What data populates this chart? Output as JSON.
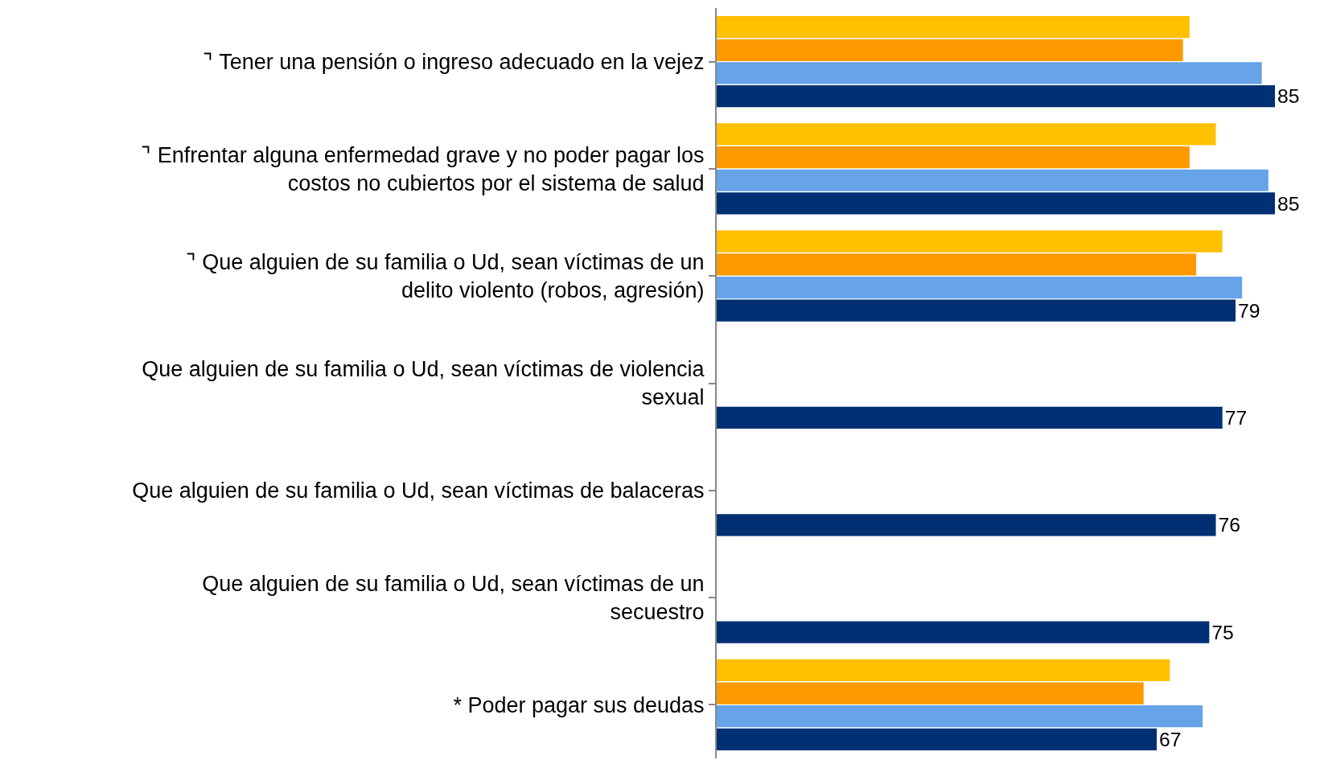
{
  "chart_data": {
    "type": "bar",
    "orientation": "horizontal",
    "tick_labels": "y",
    "categories": [
      "⌝ Tener una pensión o ingreso adecuado en la vejez",
      "⌝ Enfrentar alguna enfermedad grave y no poder pagar los costos no cubiertos por el sistema de salud",
      "⌝ Que alguien de su familia o Ud, sean víctimas de un delito violento (robos, agresión)",
      "Que alguien de su familia o Ud, sean víctimas de violencia sexual",
      "Que alguien de su familia o Ud, sean víctimas de balaceras",
      "Que alguien de su familia o Ud, sean víctimas de un secuestro",
      "* Poder pagar sus deudas"
    ],
    "series": [
      {
        "color": "#ffc000",
        "values": [
          72,
          76,
          77,
          null,
          null,
          null,
          69
        ]
      },
      {
        "color": "#ff9900",
        "values": [
          71,
          72,
          73,
          null,
          null,
          null,
          65
        ]
      },
      {
        "color": "#66a3e8",
        "values": [
          83,
          84,
          80,
          null,
          null,
          null,
          74
        ]
      },
      {
        "color": "#003073",
        "values": [
          85,
          85,
          79,
          77,
          76,
          75,
          67
        ],
        "value_labels": [
          "85",
          "85",
          "79",
          "77",
          "76",
          "75",
          "67"
        ]
      }
    ]
  }
}
